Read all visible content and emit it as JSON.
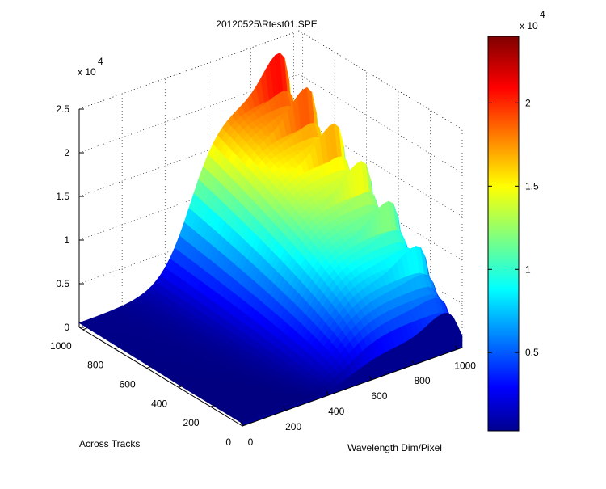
{
  "chart_data": {
    "type": "surface",
    "title": "20120525\\Rtest01.SPE",
    "xlabel": "Wavelength Dim/Pixel",
    "ylabel": "Across Tracks",
    "zlabel": "",
    "z_exponent_label": "x 10",
    "z_exponent_power": "4",
    "x_ticks": [
      "0",
      "200",
      "400",
      "600",
      "800",
      "1000"
    ],
    "y_ticks": [
      "0",
      "200",
      "400",
      "600",
      "800",
      "1000"
    ],
    "z_ticks": [
      "0",
      "0.5",
      "1",
      "1.5",
      "2",
      "2.5"
    ],
    "xlim": [
      0,
      1024
    ],
    "ylim": [
      0,
      1024
    ],
    "zlim": [
      0,
      2.5
    ],
    "colorbar": {
      "exponent_label": "x 10",
      "exponent_power": "4",
      "ticks": [
        "0.5",
        "1",
        "1.5",
        "2"
      ],
      "range": [
        0.03,
        2.4
      ],
      "colormap": "jet"
    },
    "surface_profile": {
      "description_of_shape": "intensity rises with wavelength toward peak near pixel 900, strong periodic spikes along across-track direction",
      "peak_pixel": 900,
      "peak_value": 2.1,
      "spike_max": 2.4,
      "baseline": 0.05
    },
    "grid": true
  }
}
